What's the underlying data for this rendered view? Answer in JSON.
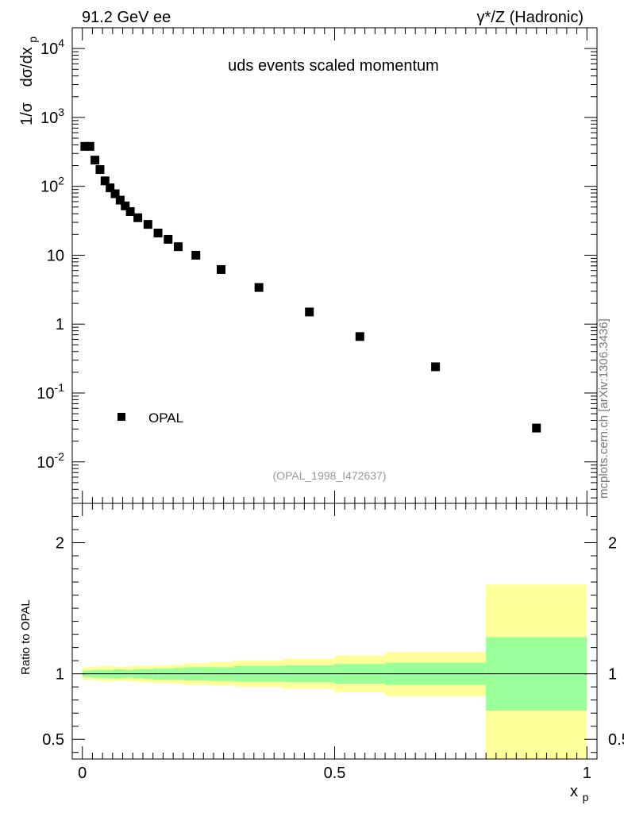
{
  "header": {
    "left": "91.2 GeV ee",
    "right": "γ*/Z (Hadronic)"
  },
  "side_label": "mcplots.cern.ch [arXiv:1306.3436]",
  "colors": {
    "band_inner": "#99ff99",
    "band_outer": "#ffff99",
    "marker": "#000000"
  },
  "chart_data": [
    {
      "type": "scatter",
      "title": "uds events scaled momentum",
      "analysis_tag": "(OPAL_1998_I472637)",
      "ylabel": "1/σ  dσ/dx_p",
      "ylabel_parts": {
        "a": "1/σ",
        "b": "dσ/dx",
        "sub": "p"
      },
      "yscale": "log",
      "ylim": [
        0.0025,
        20000
      ],
      "xlim": [
        -0.02,
        1.02
      ],
      "ytick_labels": [
        {
          "value": 0.01,
          "base": "10",
          "exp": "-2"
        },
        {
          "value": 0.1,
          "base": "10",
          "exp": "-1"
        },
        {
          "value": 1,
          "base": "1",
          "exp": ""
        },
        {
          "value": 10,
          "base": "10",
          "exp": ""
        },
        {
          "value": 100,
          "base": "10",
          "exp": "2"
        },
        {
          "value": 1000,
          "base": "10",
          "exp": "3"
        },
        {
          "value": 10000,
          "base": "10",
          "exp": "4"
        }
      ],
      "legend": {
        "entries": [
          "OPAL"
        ],
        "placement": "bottom-left"
      },
      "series": [
        {
          "name": "OPAL",
          "x": [
            0.005,
            0.015,
            0.025,
            0.035,
            0.045,
            0.055,
            0.065,
            0.075,
            0.085,
            0.095,
            0.11,
            0.13,
            0.15,
            0.17,
            0.19,
            0.225,
            0.275,
            0.35,
            0.45,
            0.55,
            0.7,
            0.9
          ],
          "y": [
            380,
            380,
            240,
            175,
            120,
            95,
            78,
            63,
            52,
            43,
            35,
            28,
            21,
            17,
            13.3,
            10,
            6.2,
            3.4,
            1.5,
            0.66,
            0.24,
            0.031
          ]
        }
      ]
    },
    {
      "type": "area",
      "title": "",
      "ylabel": "Ratio to OPAL",
      "xlabel": "x_p",
      "xlabel_parts": {
        "main": "x",
        "sub": "p"
      },
      "ylim": [
        0.35,
        2.3
      ],
      "xlim": [
        -0.02,
        1.02
      ],
      "yticks": [
        0.5,
        1,
        2
      ],
      "ytick_labels": [
        "0.5",
        "1",
        "2"
      ],
      "xticks": [
        0,
        0.5,
        1
      ],
      "xtick_labels": [
        "0",
        "0.5",
        "1"
      ],
      "reference_line": 1,
      "bins": [
        {
          "x0": 0.0,
          "x1": 0.01,
          "inner": [
            0.975,
            1.025
          ],
          "outer": [
            0.955,
            1.045
          ]
        },
        {
          "x0": 0.01,
          "x1": 0.02,
          "inner": [
            0.975,
            1.025
          ],
          "outer": [
            0.955,
            1.05
          ]
        },
        {
          "x0": 0.02,
          "x1": 0.04,
          "inner": [
            0.97,
            1.03
          ],
          "outer": [
            0.95,
            1.055
          ]
        },
        {
          "x0": 0.04,
          "x1": 0.06,
          "inner": [
            0.965,
            1.03
          ],
          "outer": [
            0.94,
            1.06
          ]
        },
        {
          "x0": 0.06,
          "x1": 0.08,
          "inner": [
            0.965,
            1.035
          ],
          "outer": [
            0.945,
            1.055
          ]
        },
        {
          "x0": 0.08,
          "x1": 0.1,
          "inner": [
            0.97,
            1.03
          ],
          "outer": [
            0.945,
            1.055
          ]
        },
        {
          "x0": 0.1,
          "x1": 0.12,
          "inner": [
            0.965,
            1.035
          ],
          "outer": [
            0.94,
            1.06
          ]
        },
        {
          "x0": 0.12,
          "x1": 0.14,
          "inner": [
            0.96,
            1.035
          ],
          "outer": [
            0.935,
            1.06
          ]
        },
        {
          "x0": 0.14,
          "x1": 0.18,
          "inner": [
            0.955,
            1.04
          ],
          "outer": [
            0.93,
            1.065
          ]
        },
        {
          "x0": 0.18,
          "x1": 0.2,
          "inner": [
            0.955,
            1.045
          ],
          "outer": [
            0.925,
            1.07
          ]
        },
        {
          "x0": 0.2,
          "x1": 0.25,
          "inner": [
            0.95,
            1.05
          ],
          "outer": [
            0.915,
            1.08
          ]
        },
        {
          "x0": 0.25,
          "x1": 0.3,
          "inner": [
            0.945,
            1.05
          ],
          "outer": [
            0.91,
            1.09
          ]
        },
        {
          "x0": 0.3,
          "x1": 0.4,
          "inner": [
            0.94,
            1.06
          ],
          "outer": [
            0.9,
            1.1
          ]
        },
        {
          "x0": 0.4,
          "x1": 0.5,
          "inner": [
            0.935,
            1.065
          ],
          "outer": [
            0.885,
            1.115
          ]
        },
        {
          "x0": 0.5,
          "x1": 0.6,
          "inner": [
            0.925,
            1.075
          ],
          "outer": [
            0.86,
            1.14
          ]
        },
        {
          "x0": 0.6,
          "x1": 0.8,
          "inner": [
            0.915,
            1.085
          ],
          "outer": [
            0.83,
            1.165
          ]
        },
        {
          "x0": 0.8,
          "x1": 1.0,
          "inner": [
            0.72,
            1.28
          ],
          "outer": [
            0.35,
            1.68
          ]
        }
      ]
    }
  ]
}
